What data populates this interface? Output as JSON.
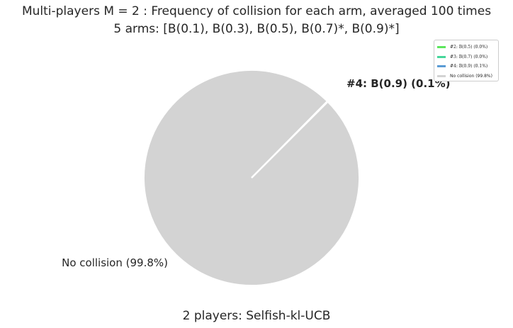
{
  "chart_data": {
    "type": "pie",
    "title": "Multi-players M = 2 : Frequency of collision for each arm, averaged 100 times",
    "subtitle": "5 arms: [B(0.1), B(0.3), B(0.5), B(0.7)*, B(0.9)*]",
    "xlabel": "2 players: Selfish-kl-UCB",
    "slices": [
      {
        "label": "#2: B(0.5) (0.0%)",
        "value": 0.0,
        "color": "#5ce65c"
      },
      {
        "label": "#3: B(0.7) (0.0%)",
        "value": 0.0,
        "color": "#46d69a"
      },
      {
        "label": "#4: B(0.9) (0.1%)",
        "value": 0.1,
        "color": "#5a9bd4"
      },
      {
        "label": "No collision (99.8%)",
        "value": 99.8,
        "color": "#d3d3d3"
      }
    ],
    "outer_label_arms": "#4: B(0.9) (0.1%)",
    "outer_label_none": "No collision (99.8%)",
    "legend": {
      "position": "top-right",
      "entries": [
        {
          "label": "#2: B(0.5) (0.0%)",
          "color": "#5ce65c"
        },
        {
          "label": "#3: B(0.7) (0.0%)",
          "color": "#46d69a"
        },
        {
          "label": "#4: B(0.9) (0.1%)",
          "color": "#5a9bd4"
        },
        {
          "label": "No collision (99.8%)",
          "color": "#d3d3d3"
        }
      ]
    }
  }
}
